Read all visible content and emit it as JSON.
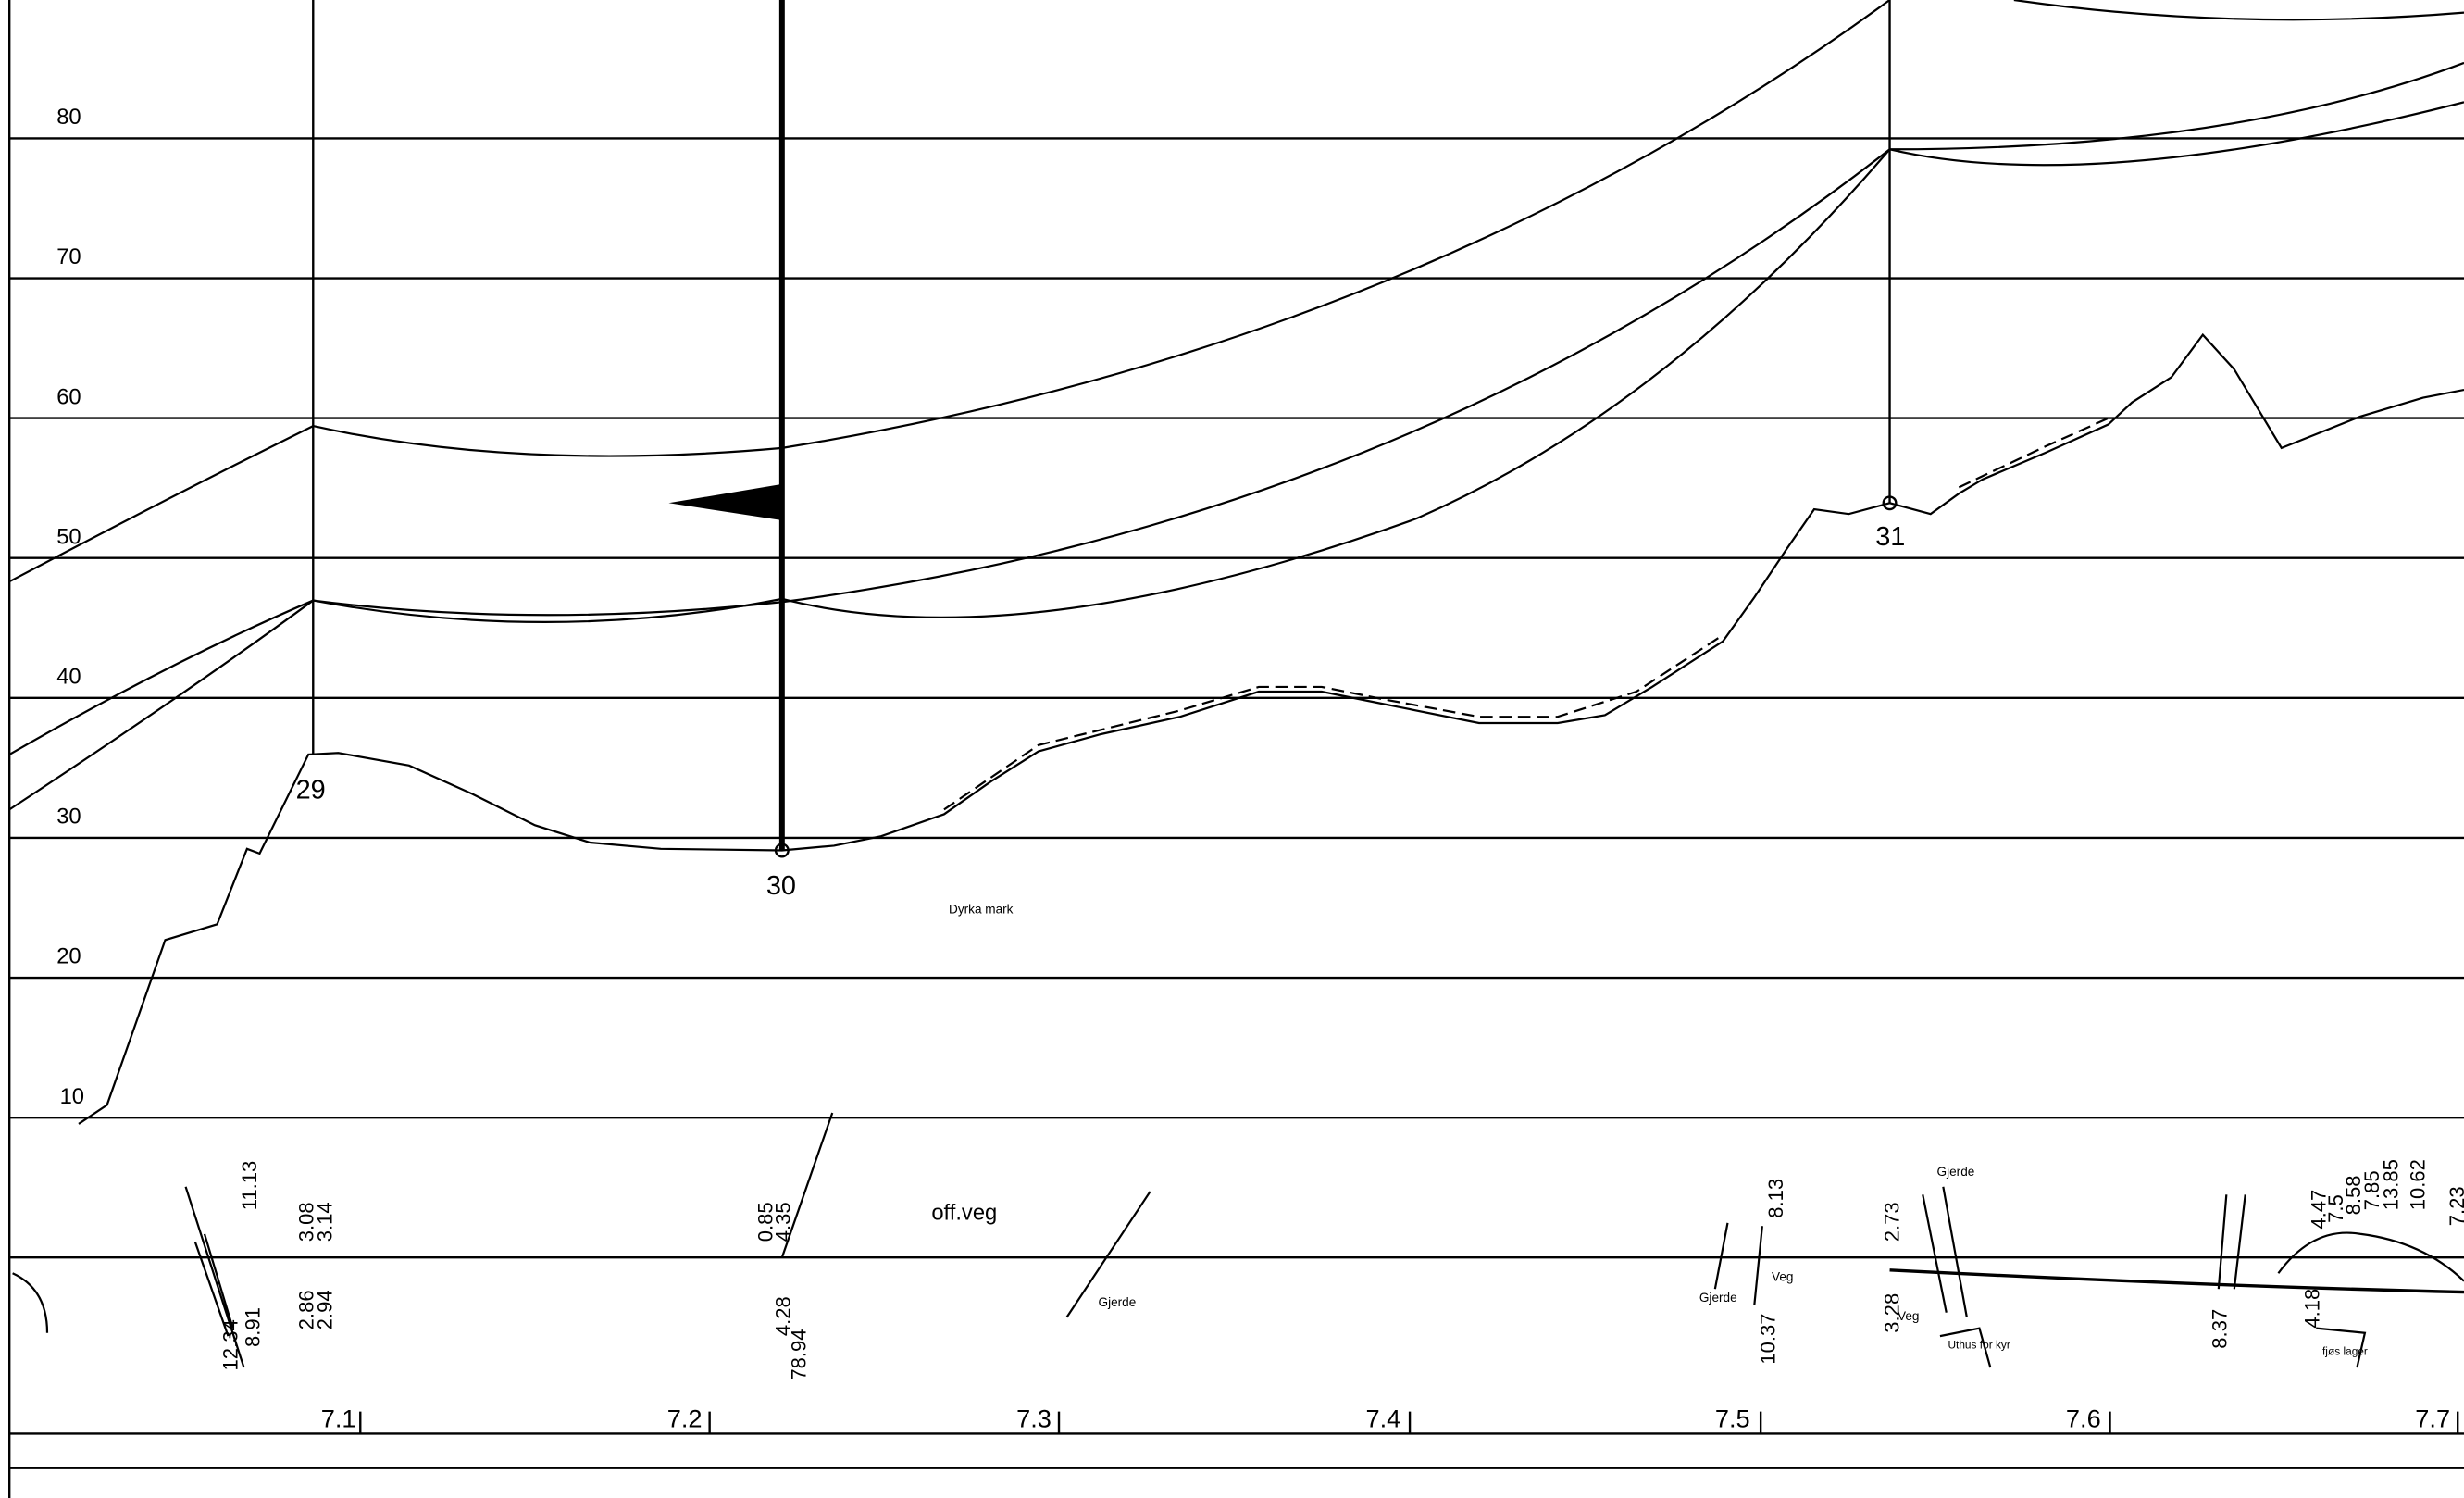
{
  "elevation_labels": [
    "80",
    "70",
    "60",
    "50",
    "40",
    "30",
    "20",
    "10"
  ],
  "chainage_labels": [
    "7.1",
    "7.2",
    "7.3",
    "7.4",
    "7.5",
    "7.6",
    "7.7"
  ],
  "towers": [
    "29",
    "30",
    "31"
  ],
  "annotations": {
    "field": "Dyrka mark",
    "road": "off.veg",
    "fence_1": "Gjerde",
    "fence_2": "Gjerde",
    "fence_3": "Gjerde",
    "road_1": "Veg",
    "road_2": "Veg",
    "barn": "Uthus for kyr",
    "storage": "fjøs lager"
  },
  "measurements": [
    "12.34",
    "8.91",
    "11.13",
    "3.08",
    "3.14",
    "2.86",
    "2.94",
    "0.85",
    "4.35",
    "4.28",
    "78.94",
    "8.13",
    "10.37",
    "2.73",
    "3.28",
    "8.37",
    "4.18",
    "4.47",
    "7.5",
    "8.58",
    "7.85",
    "13.85",
    "10.62",
    "7.23"
  ]
}
